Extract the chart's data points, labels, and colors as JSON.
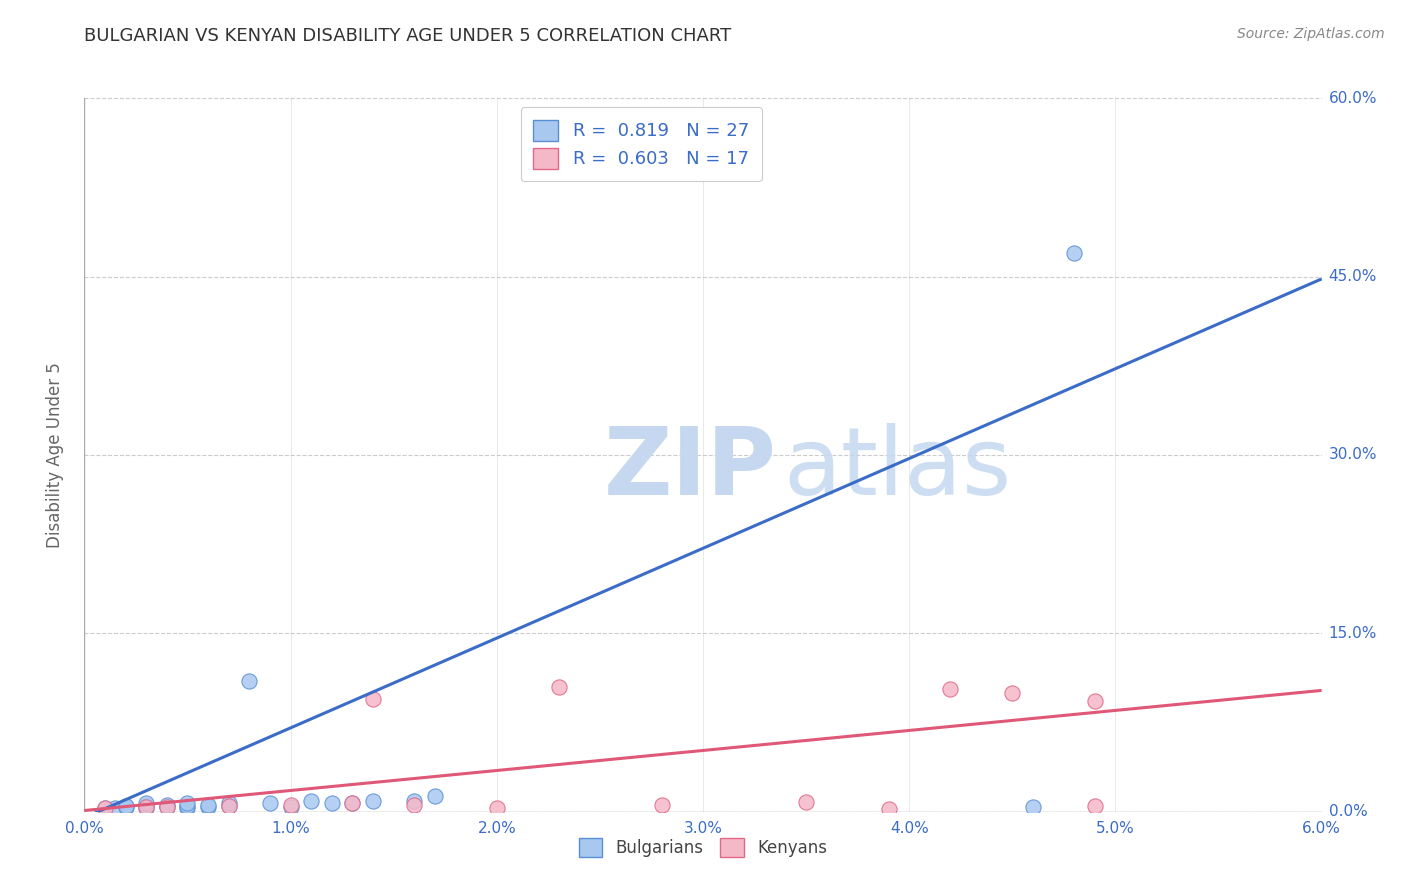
{
  "title": "BULGARIAN VS KENYAN DISABILITY AGE UNDER 5 CORRELATION CHART",
  "source": "Source: ZipAtlas.com",
  "ylabel": "Disability Age Under 5",
  "xlim": [
    0.0,
    0.06
  ],
  "ylim": [
    0.0,
    0.6
  ],
  "xticks": [
    0.0,
    0.01,
    0.02,
    0.03,
    0.04,
    0.05,
    0.06
  ],
  "yticks": [
    0.0,
    0.15,
    0.3,
    0.45,
    0.6
  ],
  "blue_color": "#A8C8F0",
  "blue_edge_color": "#5B8FD4",
  "pink_color": "#F5B8C8",
  "pink_edge_color": "#E06888",
  "blue_line_color": "#3A6CC8",
  "pink_line_color": "#E05878",
  "legend_text_color": "#3A6CC8",
  "label_color": "#3A6CC8",
  "bottom_label_color": "#444444",
  "ylabel_color": "#666666",
  "title_color": "#333333",
  "source_color": "#888888",
  "grid_color": "#cccccc",
  "axis_color": "#aaaaaa",
  "legend_blue_label": "R =  0.819   N = 27",
  "legend_pink_label": "R =  0.603   N = 17",
  "bulgarians_label": "Bulgarians",
  "kenyans_label": "Kenyans",
  "blue_scatter_x": [
    0.001,
    0.0015,
    0.002,
    0.002,
    0.003,
    0.003,
    0.003,
    0.004,
    0.004,
    0.005,
    0.005,
    0.005,
    0.006,
    0.006,
    0.007,
    0.007,
    0.008,
    0.009,
    0.01,
    0.011,
    0.012,
    0.013,
    0.014,
    0.016,
    0.017,
    0.046,
    0.048
  ],
  "blue_scatter_y": [
    0.003,
    0.003,
    0.004,
    0.005,
    0.003,
    0.005,
    0.007,
    0.004,
    0.006,
    0.003,
    0.005,
    0.007,
    0.004,
    0.006,
    0.005,
    0.007,
    0.11,
    0.007,
    0.004,
    0.009,
    0.007,
    0.007,
    0.009,
    0.009,
    0.013,
    0.004,
    0.47
  ],
  "pink_scatter_x": [
    0.001,
    0.003,
    0.004,
    0.007,
    0.01,
    0.013,
    0.014,
    0.016,
    0.02,
    0.023,
    0.028,
    0.035,
    0.039,
    0.042,
    0.045,
    0.049,
    0.049
  ],
  "pink_scatter_y": [
    0.003,
    0.004,
    0.004,
    0.005,
    0.006,
    0.007,
    0.095,
    0.006,
    0.003,
    0.105,
    0.006,
    0.008,
    0.002,
    0.103,
    0.1,
    0.093,
    0.005
  ],
  "blue_trend_x": [
    0.0,
    0.06
  ],
  "blue_trend_y": [
    -0.005,
    0.448
  ],
  "pink_trend_x": [
    0.0,
    0.06
  ],
  "pink_trend_y": [
    0.001,
    0.102
  ],
  "watermark_zip_color": "#c5d8f0",
  "watermark_atlas_color": "#c5d8f0",
  "marker_size": 120
}
